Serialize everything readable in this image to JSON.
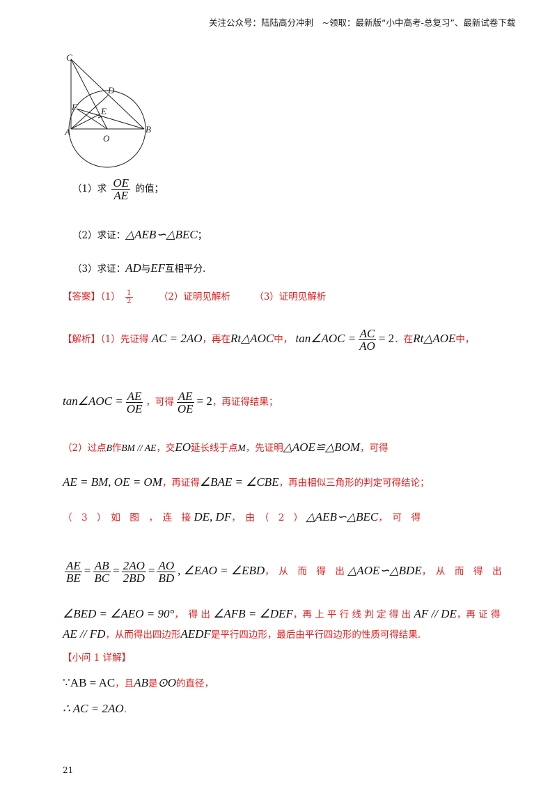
{
  "header": "关注公众号：陆陆高分冲刺　~领取：最新版“小中高考-总复习”、最新试卷下载",
  "figure": {
    "labels": {
      "C": "C",
      "D": "D",
      "F": "F",
      "E": "E",
      "A": "A",
      "B": "B",
      "O": "O"
    }
  },
  "q1": {
    "prefix": "（1）求",
    "num": "OE",
    "den": "AE",
    "suffix": "的值；"
  },
  "q2": {
    "prefix": "（2）求证：",
    "math": "△AEB∽△BEC",
    "suffix": "；"
  },
  "q3": {
    "prefix": "（3）求证：",
    "m1": "AD",
    "mid": "与",
    "m2": "EF",
    "suffix": "互相平分."
  },
  "answer": {
    "tag": "【答案】",
    "p1": "（1）",
    "p1_num": "1",
    "p1_den": "2",
    "p2": "（2）证明见解析",
    "p3": "（3）证明见解析"
  },
  "analysis": {
    "tag": "【解析】",
    "l1a": "（1）先证得",
    "l1m1": "AC = 2AO",
    "l1b": "，再在",
    "l1m2": "Rt△AOC",
    "l1c": "中，",
    "l1m3": "tan∠AOC =",
    "l1f_num": "AC",
    "l1f_den": "AO",
    "l1m4": "= 2",
    "l1d": "．在",
    "l1m5": "Rt△AOE",
    "l1e": "中，",
    "l2m1": "tan∠AOC =",
    "l2f_num": "AE",
    "l2f_den": "OE",
    "l2a": "，可得",
    "l2f2_num": "AE",
    "l2f2_den": "OE",
    "l2m2": "= 2",
    "l2b": "，再证得结果；",
    "l3a": "（2）过点",
    "l3m1": "B",
    "l3b": "作",
    "l3m2": "BM // AE",
    "l3c": "，交",
    "l3m3": "EO",
    "l3d": "延长线于点",
    "l3m4": "M",
    "l3e": "，先证明",
    "l3m5": "△AOE≌△BOM",
    "l3f": "，可得",
    "l4m1": "AE = BM, OE = OM",
    "l4a": "，再证得",
    "l4m2": "∠BAE = ∠CBE",
    "l4b": "，再由相似三角形的判定可得结论；",
    "l5a": "（　3　）　如　图　，　连　接",
    "l5m1": "DE, DF",
    "l5b": "，　由　（　2　）",
    "l5m2": "△AEB∽△BEC",
    "l5c": "，　可　得",
    "l6f1_num": "AE",
    "l6f1_den": "BE",
    "l6f2_num": "AB",
    "l6f2_den": "BC",
    "l6f3_num": "2AO",
    "l6f3_den": "2BD",
    "l6f4_num": "AO",
    "l6f4_den": "BD",
    "l6m1": ", ∠EAO = ∠EBD",
    "l6a": "，　从　而　得　出",
    "l6m2": "△AOE∽△BDE",
    "l6b": "，　从　而　得　出",
    "l7m1": "∠BED = ∠AEO = 90°",
    "l7a": "，　得 出",
    "l7m2": "∠AFB = ∠DEF",
    "l7b": "，再 上 平 行 线 判 定 得 出",
    "l7m3": "AF // DE",
    "l7c": "，再 证 得",
    "l8m1": "AE // FD",
    "l8a": "，从而得出四边形",
    "l8m2": "AEDF",
    "l8b": "是平行四边形，最后由平行四边形的性质可得结果.",
    "sub1": "【小问 1 详解】",
    "s1a": "∵AB = AC",
    "s1b": "，且",
    "s1m": "AB",
    "s1c": "是",
    "s1m2": "⊙O",
    "s1d": "的直径，",
    "s2": "∴ AC = 2AO",
    "s2b": "."
  },
  "page_number": "21"
}
